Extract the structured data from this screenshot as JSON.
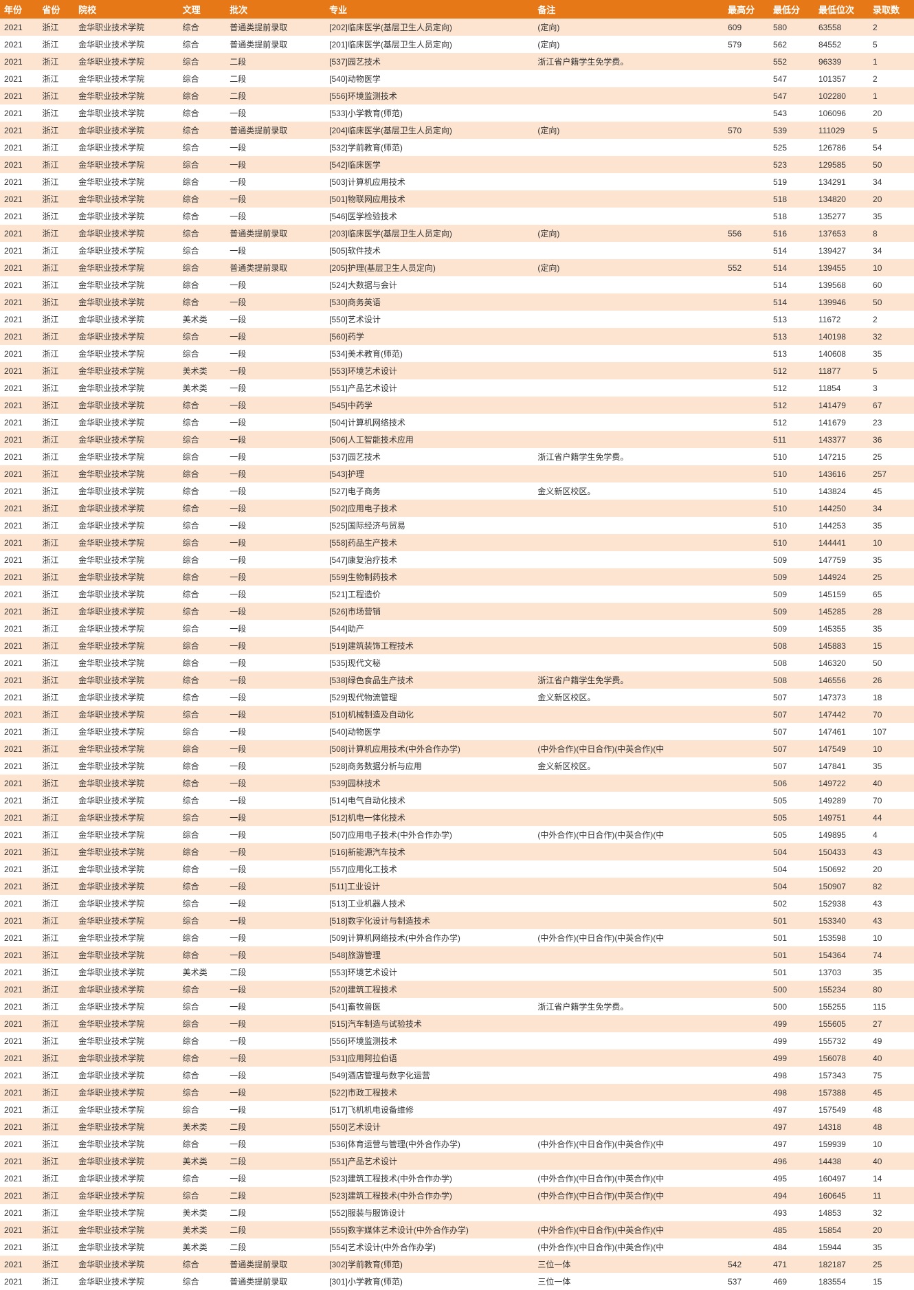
{
  "columns": [
    "年份",
    "省份",
    "院校",
    "文理",
    "批次",
    "专业",
    "备注",
    "最高分",
    "最低分",
    "最低位次",
    "录取数"
  ],
  "rows": [
    [
      "2021",
      "浙江",
      "金华职业技术学院",
      "综合",
      "普通类提前录取",
      "[202]临床医学(基层卫生人员定向)",
      "(定向)",
      "609",
      "580",
      "63558",
      "2"
    ],
    [
      "2021",
      "浙江",
      "金华职业技术学院",
      "综合",
      "普通类提前录取",
      "[201]临床医学(基层卫生人员定向)",
      "(定向)",
      "579",
      "562",
      "84552",
      "5"
    ],
    [
      "2021",
      "浙江",
      "金华职业技术学院",
      "综合",
      "二段",
      "[537]园艺技术",
      "浙江省户籍学生免学费。",
      "",
      "552",
      "96339",
      "1"
    ],
    [
      "2021",
      "浙江",
      "金华职业技术学院",
      "综合",
      "二段",
      "[540]动物医学",
      "",
      "",
      "547",
      "101357",
      "2"
    ],
    [
      "2021",
      "浙江",
      "金华职业技术学院",
      "综合",
      "二段",
      "[556]环境监测技术",
      "",
      "",
      "547",
      "102280",
      "1"
    ],
    [
      "2021",
      "浙江",
      "金华职业技术学院",
      "综合",
      "一段",
      "[533]小学教育(师范)",
      "",
      "",
      "543",
      "106096",
      "20"
    ],
    [
      "2021",
      "浙江",
      "金华职业技术学院",
      "综合",
      "普通类提前录取",
      "[204]临床医学(基层卫生人员定向)",
      "(定向)",
      "570",
      "539",
      "111029",
      "5"
    ],
    [
      "2021",
      "浙江",
      "金华职业技术学院",
      "综合",
      "一段",
      "[532]学前教育(师范)",
      "",
      "",
      "525",
      "126786",
      "54"
    ],
    [
      "2021",
      "浙江",
      "金华职业技术学院",
      "综合",
      "一段",
      "[542]临床医学",
      "",
      "",
      "523",
      "129585",
      "50"
    ],
    [
      "2021",
      "浙江",
      "金华职业技术学院",
      "综合",
      "一段",
      "[503]计算机应用技术",
      "",
      "",
      "519",
      "134291",
      "34"
    ],
    [
      "2021",
      "浙江",
      "金华职业技术学院",
      "综合",
      "一段",
      "[501]物联网应用技术",
      "",
      "",
      "518",
      "134820",
      "20"
    ],
    [
      "2021",
      "浙江",
      "金华职业技术学院",
      "综合",
      "一段",
      "[546]医学检验技术",
      "",
      "",
      "518",
      "135277",
      "35"
    ],
    [
      "2021",
      "浙江",
      "金华职业技术学院",
      "综合",
      "普通类提前录取",
      "[203]临床医学(基层卫生人员定向)",
      "(定向)",
      "556",
      "516",
      "137653",
      "8"
    ],
    [
      "2021",
      "浙江",
      "金华职业技术学院",
      "综合",
      "一段",
      "[505]软件技术",
      "",
      "",
      "514",
      "139427",
      "34"
    ],
    [
      "2021",
      "浙江",
      "金华职业技术学院",
      "综合",
      "普通类提前录取",
      "[205]护理(基层卫生人员定向)",
      "(定向)",
      "552",
      "514",
      "139455",
      "10"
    ],
    [
      "2021",
      "浙江",
      "金华职业技术学院",
      "综合",
      "一段",
      "[524]大数据与会计",
      "",
      "",
      "514",
      "139568",
      "60"
    ],
    [
      "2021",
      "浙江",
      "金华职业技术学院",
      "综合",
      "一段",
      "[530]商务英语",
      "",
      "",
      "514",
      "139946",
      "50"
    ],
    [
      "2021",
      "浙江",
      "金华职业技术学院",
      "美术类",
      "一段",
      "[550]艺术设计",
      "",
      "",
      "513",
      "11672",
      "2"
    ],
    [
      "2021",
      "浙江",
      "金华职业技术学院",
      "综合",
      "一段",
      "[560]药学",
      "",
      "",
      "513",
      "140198",
      "32"
    ],
    [
      "2021",
      "浙江",
      "金华职业技术学院",
      "综合",
      "一段",
      "[534]美术教育(师范)",
      "",
      "",
      "513",
      "140608",
      "35"
    ],
    [
      "2021",
      "浙江",
      "金华职业技术学院",
      "美术类",
      "一段",
      "[553]环境艺术设计",
      "",
      "",
      "512",
      "11877",
      "5"
    ],
    [
      "2021",
      "浙江",
      "金华职业技术学院",
      "美术类",
      "一段",
      "[551]产品艺术设计",
      "",
      "",
      "512",
      "11854",
      "3"
    ],
    [
      "2021",
      "浙江",
      "金华职业技术学院",
      "综合",
      "一段",
      "[545]中药学",
      "",
      "",
      "512",
      "141479",
      "67"
    ],
    [
      "2021",
      "浙江",
      "金华职业技术学院",
      "综合",
      "一段",
      "[504]计算机网络技术",
      "",
      "",
      "512",
      "141679",
      "23"
    ],
    [
      "2021",
      "浙江",
      "金华职业技术学院",
      "综合",
      "一段",
      "[506]人工智能技术应用",
      "",
      "",
      "511",
      "143377",
      "36"
    ],
    [
      "2021",
      "浙江",
      "金华职业技术学院",
      "综合",
      "一段",
      "[537]园艺技术",
      "浙江省户籍学生免学费。",
      "",
      "510",
      "147215",
      "25"
    ],
    [
      "2021",
      "浙江",
      "金华职业技术学院",
      "综合",
      "一段",
      "[543]护理",
      "",
      "",
      "510",
      "143616",
      "257"
    ],
    [
      "2021",
      "浙江",
      "金华职业技术学院",
      "综合",
      "一段",
      "[527]电子商务",
      "金义新区校区。",
      "",
      "510",
      "143824",
      "45"
    ],
    [
      "2021",
      "浙江",
      "金华职业技术学院",
      "综合",
      "一段",
      "[502]应用电子技术",
      "",
      "",
      "510",
      "144250",
      "34"
    ],
    [
      "2021",
      "浙江",
      "金华职业技术学院",
      "综合",
      "一段",
      "[525]国际经济与贸易",
      "",
      "",
      "510",
      "144253",
      "35"
    ],
    [
      "2021",
      "浙江",
      "金华职业技术学院",
      "综合",
      "一段",
      "[558]药品生产技术",
      "",
      "",
      "510",
      "144441",
      "10"
    ],
    [
      "2021",
      "浙江",
      "金华职业技术学院",
      "综合",
      "一段",
      "[547]康复治疗技术",
      "",
      "",
      "509",
      "147759",
      "35"
    ],
    [
      "2021",
      "浙江",
      "金华职业技术学院",
      "综合",
      "一段",
      "[559]生物制药技术",
      "",
      "",
      "509",
      "144924",
      "25"
    ],
    [
      "2021",
      "浙江",
      "金华职业技术学院",
      "综合",
      "一段",
      "[521]工程造价",
      "",
      "",
      "509",
      "145159",
      "65"
    ],
    [
      "2021",
      "浙江",
      "金华职业技术学院",
      "综合",
      "一段",
      "[526]市场营销",
      "",
      "",
      "509",
      "145285",
      "28"
    ],
    [
      "2021",
      "浙江",
      "金华职业技术学院",
      "综合",
      "一段",
      "[544]助产",
      "",
      "",
      "509",
      "145355",
      "35"
    ],
    [
      "2021",
      "浙江",
      "金华职业技术学院",
      "综合",
      "一段",
      "[519]建筑装饰工程技术",
      "",
      "",
      "508",
      "145883",
      "15"
    ],
    [
      "2021",
      "浙江",
      "金华职业技术学院",
      "综合",
      "一段",
      "[535]现代文秘",
      "",
      "",
      "508",
      "146320",
      "50"
    ],
    [
      "2021",
      "浙江",
      "金华职业技术学院",
      "综合",
      "一段",
      "[538]绿色食品生产技术",
      "浙江省户籍学生免学费。",
      "",
      "508",
      "146556",
      "26"
    ],
    [
      "2021",
      "浙江",
      "金华职业技术学院",
      "综合",
      "一段",
      "[529]现代物流管理",
      "金义新区校区。",
      "",
      "507",
      "147373",
      "18"
    ],
    [
      "2021",
      "浙江",
      "金华职业技术学院",
      "综合",
      "一段",
      "[510]机械制造及自动化",
      "",
      "",
      "507",
      "147442",
      "70"
    ],
    [
      "2021",
      "浙江",
      "金华职业技术学院",
      "综合",
      "一段",
      "[540]动物医学",
      "",
      "",
      "507",
      "147461",
      "107"
    ],
    [
      "2021",
      "浙江",
      "金华职业技术学院",
      "综合",
      "一段",
      "[508]计算机应用技术(中外合作办学)",
      "(中外合作)(中日合作)(中英合作)(中",
      "",
      "507",
      "147549",
      "10"
    ],
    [
      "2021",
      "浙江",
      "金华职业技术学院",
      "综合",
      "一段",
      "[528]商务数据分析与应用",
      "金义新区校区。",
      "",
      "507",
      "147841",
      "35"
    ],
    [
      "2021",
      "浙江",
      "金华职业技术学院",
      "综合",
      "一段",
      "[539]园林技术",
      "",
      "",
      "506",
      "149722",
      "40"
    ],
    [
      "2021",
      "浙江",
      "金华职业技术学院",
      "综合",
      "一段",
      "[514]电气自动化技术",
      "",
      "",
      "505",
      "149289",
      "70"
    ],
    [
      "2021",
      "浙江",
      "金华职业技术学院",
      "综合",
      "一段",
      "[512]机电一体化技术",
      "",
      "",
      "505",
      "149751",
      "44"
    ],
    [
      "2021",
      "浙江",
      "金华职业技术学院",
      "综合",
      "一段",
      "[507]应用电子技术(中外合作办学)",
      "(中外合作)(中日合作)(中英合作)(中",
      "",
      "505",
      "149895",
      "4"
    ],
    [
      "2021",
      "浙江",
      "金华职业技术学院",
      "综合",
      "一段",
      "[516]新能源汽车技术",
      "",
      "",
      "504",
      "150433",
      "43"
    ],
    [
      "2021",
      "浙江",
      "金华职业技术学院",
      "综合",
      "一段",
      "[557]应用化工技术",
      "",
      "",
      "504",
      "150692",
      "20"
    ],
    [
      "2021",
      "浙江",
      "金华职业技术学院",
      "综合",
      "一段",
      "[511]工业设计",
      "",
      "",
      "504",
      "150907",
      "82"
    ],
    [
      "2021",
      "浙江",
      "金华职业技术学院",
      "综合",
      "一段",
      "[513]工业机器人技术",
      "",
      "",
      "502",
      "152938",
      "43"
    ],
    [
      "2021",
      "浙江",
      "金华职业技术学院",
      "综合",
      "一段",
      "[518]数字化设计与制造技术",
      "",
      "",
      "501",
      "153340",
      "43"
    ],
    [
      "2021",
      "浙江",
      "金华职业技术学院",
      "综合",
      "一段",
      "[509]计算机网络技术(中外合作办学)",
      "(中外合作)(中日合作)(中英合作)(中",
      "",
      "501",
      "153598",
      "10"
    ],
    [
      "2021",
      "浙江",
      "金华职业技术学院",
      "综合",
      "一段",
      "[548]旅游管理",
      "",
      "",
      "501",
      "154364",
      "74"
    ],
    [
      "2021",
      "浙江",
      "金华职业技术学院",
      "美术类",
      "二段",
      "[553]环境艺术设计",
      "",
      "",
      "501",
      "13703",
      "35"
    ],
    [
      "2021",
      "浙江",
      "金华职业技术学院",
      "综合",
      "一段",
      "[520]建筑工程技术",
      "",
      "",
      "500",
      "155234",
      "80"
    ],
    [
      "2021",
      "浙江",
      "金华职业技术学院",
      "综合",
      "一段",
      "[541]畜牧兽医",
      "浙江省户籍学生免学费。",
      "",
      "500",
      "155255",
      "115"
    ],
    [
      "2021",
      "浙江",
      "金华职业技术学院",
      "综合",
      "一段",
      "[515]汽车制造与试验技术",
      "",
      "",
      "499",
      "155605",
      "27"
    ],
    [
      "2021",
      "浙江",
      "金华职业技术学院",
      "综合",
      "一段",
      "[556]环境监测技术",
      "",
      "",
      "499",
      "155732",
      "49"
    ],
    [
      "2021",
      "浙江",
      "金华职业技术学院",
      "综合",
      "一段",
      "[531]应用阿拉伯语",
      "",
      "",
      "499",
      "156078",
      "40"
    ],
    [
      "2021",
      "浙江",
      "金华职业技术学院",
      "综合",
      "一段",
      "[549]酒店管理与数字化运营",
      "",
      "",
      "498",
      "157343",
      "75"
    ],
    [
      "2021",
      "浙江",
      "金华职业技术学院",
      "综合",
      "一段",
      "[522]市政工程技术",
      "",
      "",
      "498",
      "157388",
      "45"
    ],
    [
      "2021",
      "浙江",
      "金华职业技术学院",
      "综合",
      "一段",
      "[517]飞机机电设备维修",
      "",
      "",
      "497",
      "157549",
      "48"
    ],
    [
      "2021",
      "浙江",
      "金华职业技术学院",
      "美术类",
      "二段",
      "[550]艺术设计",
      "",
      "",
      "497",
      "14318",
      "48"
    ],
    [
      "2021",
      "浙江",
      "金华职业技术学院",
      "综合",
      "一段",
      "[536]体育运营与管理(中外合作办学)",
      "(中外合作)(中日合作)(中英合作)(中",
      "",
      "497",
      "159939",
      "10"
    ],
    [
      "2021",
      "浙江",
      "金华职业技术学院",
      "美术类",
      "二段",
      "[551]产品艺术设计",
      "",
      "",
      "496",
      "14438",
      "40"
    ],
    [
      "2021",
      "浙江",
      "金华职业技术学院",
      "综合",
      "一段",
      "[523]建筑工程技术(中外合作办学)",
      "(中外合作)(中日合作)(中英合作)(中",
      "",
      "495",
      "160497",
      "14"
    ],
    [
      "2021",
      "浙江",
      "金华职业技术学院",
      "综合",
      "二段",
      "[523]建筑工程技术(中外合作办学)",
      "(中外合作)(中日合作)(中英合作)(中",
      "",
      "494",
      "160645",
      "11"
    ],
    [
      "2021",
      "浙江",
      "金华职业技术学院",
      "美术类",
      "二段",
      "[552]服装与服饰设计",
      "",
      "",
      "493",
      "14853",
      "32"
    ],
    [
      "2021",
      "浙江",
      "金华职业技术学院",
      "美术类",
      "二段",
      "[555]数字媒体艺术设计(中外合作办学)",
      "(中外合作)(中日合作)(中英合作)(中",
      "",
      "485",
      "15854",
      "20"
    ],
    [
      "2021",
      "浙江",
      "金华职业技术学院",
      "美术类",
      "二段",
      "[554]艺术设计(中外合作办学)",
      "(中外合作)(中日合作)(中英合作)(中",
      "",
      "484",
      "15944",
      "35"
    ],
    [
      "2021",
      "浙江",
      "金华职业技术学院",
      "综合",
      "普通类提前录取",
      "[302]学前教育(师范)",
      "三位一体",
      "542",
      "471",
      "182187",
      "25"
    ],
    [
      "2021",
      "浙江",
      "金华职业技术学院",
      "综合",
      "普通类提前录取",
      "[301]小学教育(师范)",
      "三位一体",
      "537",
      "469",
      "183554",
      "15"
    ]
  ]
}
